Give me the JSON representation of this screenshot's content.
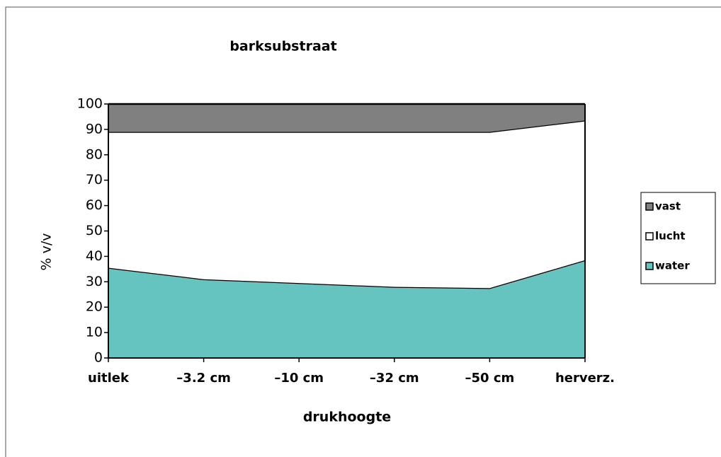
{
  "chart_data": {
    "type": "stacked_area",
    "title": "barksubstraat",
    "x_label": "drukhoogte",
    "y_label": "% v/v",
    "categories": [
      "uitlek",
      "–3.2 cm",
      "–10 cm",
      "–32 cm",
      "–50 cm",
      "herverz."
    ],
    "series": [
      {
        "name": "water",
        "color": "#66c4c0",
        "values": [
          35.5,
          31,
          29.5,
          28,
          27.5,
          38.5
        ]
      },
      {
        "name": "lucht",
        "color": "#ffffff",
        "values": [
          53.5,
          58,
          59.5,
          61,
          61.5,
          55
        ]
      },
      {
        "name": "vast",
        "color": "#808080",
        "values": [
          11,
          11,
          11,
          11,
          11,
          6.5
        ]
      }
    ],
    "ylim": [
      0,
      100
    ],
    "yticks": [
      0,
      10,
      20,
      30,
      40,
      50,
      60,
      70,
      80,
      90,
      100
    ],
    "grid": false,
    "legend": "right"
  }
}
